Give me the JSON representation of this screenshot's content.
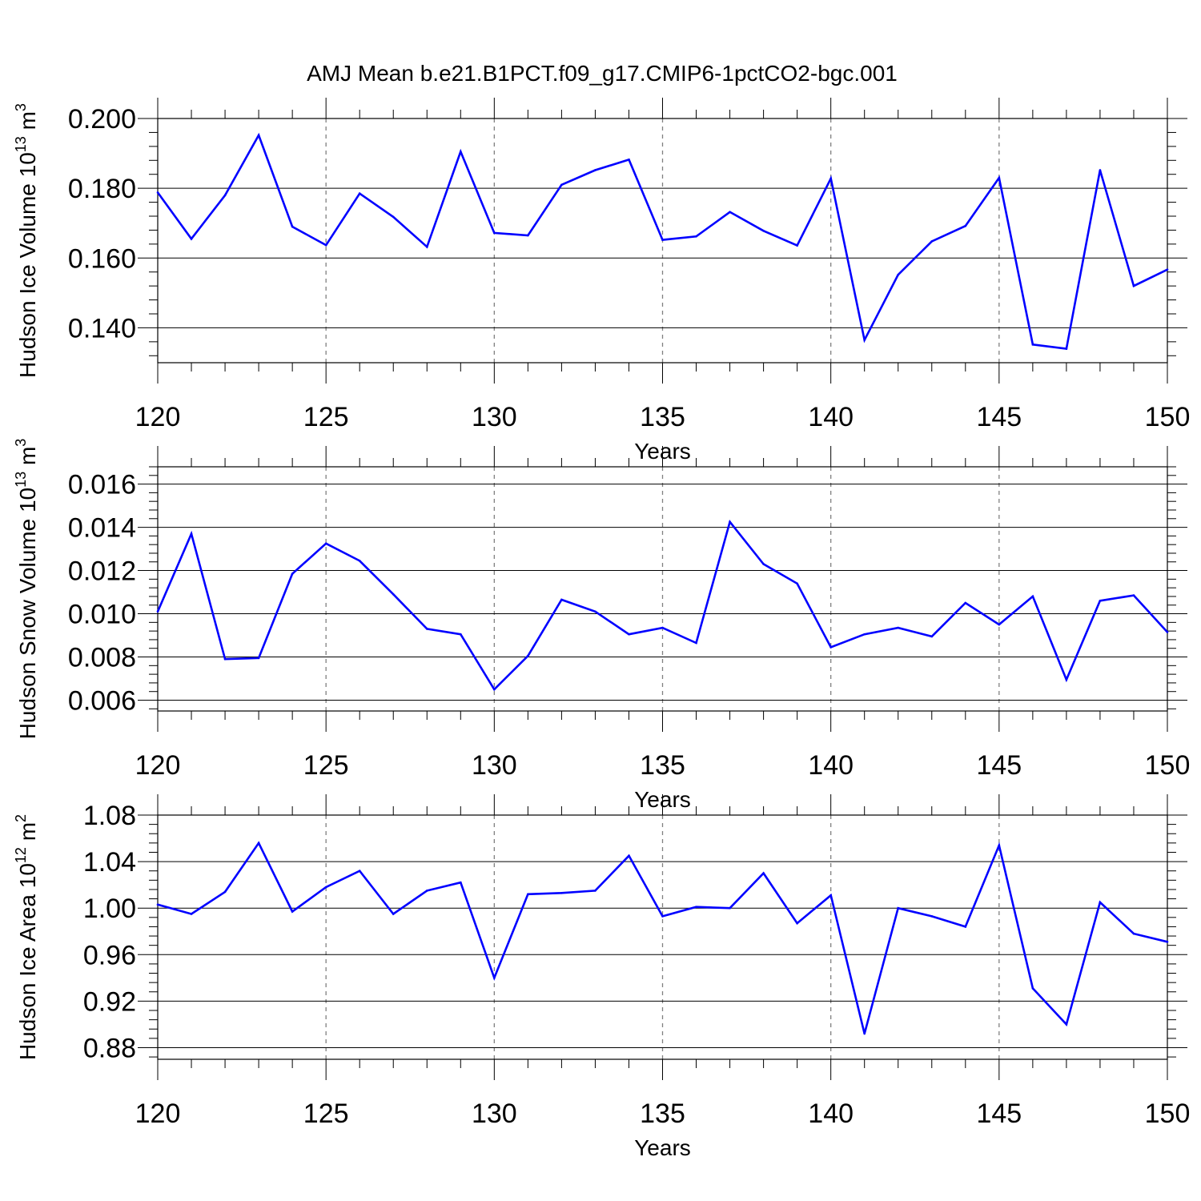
{
  "title": "AMJ Mean b.e21.B1PCT.f09_g17.CMIP6-1pctCO2-bgc.001",
  "line_color": "#0000ff",
  "chart_data": [
    {
      "type": "line",
      "ylabel": "Hudson Ice Volume 10",
      "ylabel_exp": "13",
      "ylabel_unit": " m",
      "ylabel_unit_exp": "3",
      "xlabel": "Years",
      "xlim": [
        120,
        150
      ],
      "ylim": [
        0.13,
        0.2
      ],
      "x_ticks": [
        120,
        125,
        130,
        135,
        140,
        145,
        150
      ],
      "x_tick_labels": [
        "120",
        "125",
        "130",
        "135",
        "140",
        "145",
        "150"
      ],
      "y_ticks": [
        0.14,
        0.16,
        0.18,
        0.2
      ],
      "y_tick_labels": [
        "0.140",
        "0.160",
        "0.180",
        "0.200"
      ],
      "y_minor_step": 0.004,
      "grid": "vertical dashed at major x ticks",
      "x": [
        120,
        121,
        122,
        123,
        124,
        125,
        126,
        127,
        128,
        129,
        130,
        131,
        132,
        133,
        134,
        135,
        136,
        137,
        138,
        139,
        140,
        141,
        142,
        143,
        144,
        145,
        146,
        147,
        148,
        149,
        150
      ],
      "values": [
        0.1788,
        0.1655,
        0.178,
        0.1952,
        0.169,
        0.1637,
        0.1785,
        0.1718,
        0.1632,
        0.1905,
        0.1672,
        0.1665,
        0.181,
        0.1852,
        0.1882,
        0.1652,
        0.1662,
        0.1732,
        0.1678,
        0.1636,
        0.1828,
        0.1365,
        0.1552,
        0.1648,
        0.1692,
        0.183,
        0.1352,
        0.134,
        0.1852,
        0.152,
        0.1567
      ]
    },
    {
      "type": "line",
      "ylabel": "Hudson Snow Volume 10",
      "ylabel_exp": "13",
      "ylabel_unit": " m",
      "ylabel_unit_exp": "3",
      "xlabel": "Years",
      "xlim": [
        120,
        150
      ],
      "ylim": [
        0.0055,
        0.0168
      ],
      "x_ticks": [
        120,
        125,
        130,
        135,
        140,
        145,
        150
      ],
      "x_tick_labels": [
        "120",
        "125",
        "130",
        "135",
        "140",
        "145",
        "150"
      ],
      "y_ticks": [
        0.006,
        0.008,
        0.01,
        0.012,
        0.014,
        0.016
      ],
      "y_tick_labels": [
        "0.006",
        "0.008",
        "0.010",
        "0.012",
        "0.014",
        "0.016"
      ],
      "y_minor_step": 0.0004,
      "grid": "vertical dashed at major x ticks",
      "x": [
        120,
        121,
        122,
        123,
        124,
        125,
        126,
        127,
        128,
        129,
        130,
        131,
        132,
        133,
        134,
        135,
        136,
        137,
        138,
        139,
        140,
        141,
        142,
        143,
        144,
        145,
        146,
        147,
        148,
        149,
        150
      ],
      "values": [
        0.0101,
        0.0137,
        0.0079,
        0.00795,
        0.01185,
        0.01325,
        0.01245,
        0.0109,
        0.0093,
        0.00905,
        0.0065,
        0.00805,
        0.01065,
        0.0101,
        0.00905,
        0.00935,
        0.00865,
        0.01425,
        0.0123,
        0.0114,
        0.00845,
        0.00905,
        0.00935,
        0.00895,
        0.0105,
        0.0095,
        0.0108,
        0.00695,
        0.0106,
        0.01085,
        0.00915
      ]
    },
    {
      "type": "line",
      "ylabel": "Hudson Ice Area 10",
      "ylabel_exp": "12",
      "ylabel_unit": " m",
      "ylabel_unit_exp": "2",
      "xlabel": "Years",
      "xlim": [
        120,
        150
      ],
      "ylim": [
        0.87,
        1.08
      ],
      "x_ticks": [
        120,
        125,
        130,
        135,
        140,
        145,
        150
      ],
      "x_tick_labels": [
        "120",
        "125",
        "130",
        "135",
        "140",
        "145",
        "150"
      ],
      "y_ticks": [
        0.88,
        0.92,
        0.96,
        1.0,
        1.04,
        1.08
      ],
      "y_tick_labels": [
        "0.88",
        "0.92",
        "0.96",
        "1.00",
        "1.04",
        "1.08"
      ],
      "y_minor_step": 0.008,
      "grid": "vertical dashed at major x ticks",
      "x": [
        120,
        121,
        122,
        123,
        124,
        125,
        126,
        127,
        128,
        129,
        130,
        131,
        132,
        133,
        134,
        135,
        136,
        137,
        138,
        139,
        140,
        141,
        142,
        143,
        144,
        145,
        146,
        147,
        148,
        149,
        150
      ],
      "values": [
        1.003,
        0.995,
        1.014,
        1.056,
        0.997,
        1.018,
        1.032,
        0.995,
        1.015,
        1.022,
        0.94,
        1.012,
        1.013,
        1.015,
        1.045,
        0.993,
        1.001,
        1.0,
        1.03,
        0.987,
        1.011,
        0.892,
        1.0,
        0.993,
        0.984,
        1.054,
        0.931,
        0.9,
        1.005,
        0.978,
        0.971
      ]
    }
  ]
}
